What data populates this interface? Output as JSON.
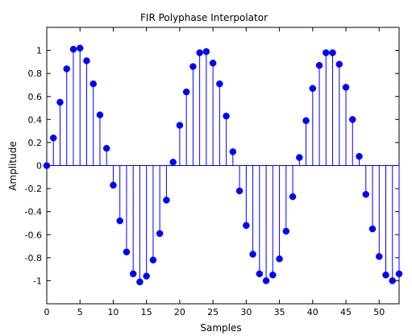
{
  "chart_data": {
    "type": "stem",
    "title": "FIR Polyphase Interpolator",
    "xlabel": "Samples",
    "ylabel": "Amplitude",
    "xlim": [
      0,
      53
    ],
    "ylim": [
      -1.2,
      1.2
    ],
    "xticks": [
      0,
      5,
      10,
      15,
      20,
      25,
      30,
      35,
      40,
      45,
      50
    ],
    "yticks": [
      -1,
      -0.8,
      -0.6,
      -0.4,
      -0.2,
      0,
      0.2,
      0.4,
      0.6,
      0.8,
      1
    ],
    "ytick_labels": [
      "-1",
      "-0.8",
      "-0.6",
      "-0.4",
      "-0.2",
      "0",
      "0.2",
      "0.4",
      "0.6",
      "0.8",
      "1"
    ],
    "grid": false,
    "color": "#0000ff",
    "series": [
      {
        "x": [
          0,
          1,
          2,
          3,
          4,
          5,
          6,
          7,
          8,
          9,
          10,
          11,
          12,
          13,
          14,
          15,
          16,
          17,
          18,
          19,
          20,
          21,
          22,
          23,
          24,
          25,
          26,
          27,
          28,
          29,
          30,
          31,
          32,
          33,
          34,
          35,
          36,
          37,
          38,
          39,
          40,
          41,
          42,
          43,
          44,
          45,
          46,
          47,
          48,
          49,
          50,
          51,
          52,
          53
        ],
        "values": [
          0,
          0.24,
          0.55,
          0.84,
          1.01,
          1.02,
          0.91,
          0.71,
          0.44,
          0.15,
          -0.17,
          -0.48,
          -0.75,
          -0.94,
          -1.01,
          -0.96,
          -0.82,
          -0.59,
          -0.3,
          0.03,
          0.35,
          0.64,
          0.86,
          0.98,
          0.99,
          0.89,
          0.71,
          0.43,
          0.12,
          -0.22,
          -0.52,
          -0.77,
          -0.94,
          -1.0,
          -0.95,
          -0.81,
          -0.57,
          -0.27,
          0.07,
          0.39,
          0.67,
          0.87,
          0.98,
          0.98,
          0.88,
          0.68,
          0.4,
          0.08,
          -0.25,
          -0.55,
          -0.79,
          -0.95,
          -1.0,
          -0.94
        ]
      }
    ]
  }
}
